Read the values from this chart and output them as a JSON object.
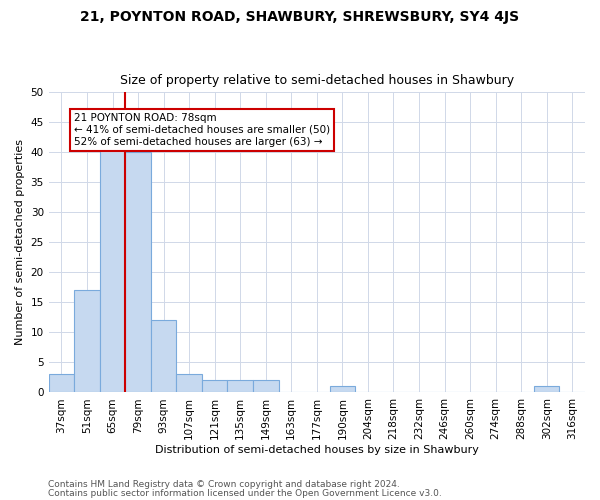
{
  "title": "21, POYNTON ROAD, SHAWBURY, SHREWSBURY, SY4 4JS",
  "subtitle": "Size of property relative to semi-detached houses in Shawbury",
  "xlabel": "Distribution of semi-detached houses by size in Shawbury",
  "ylabel": "Number of semi-detached properties",
  "footnote1": "Contains HM Land Registry data © Crown copyright and database right 2024.",
  "footnote2": "Contains public sector information licensed under the Open Government Licence v3.0.",
  "bin_labels": [
    "37sqm",
    "51sqm",
    "65sqm",
    "79sqm",
    "93sqm",
    "107sqm",
    "121sqm",
    "135sqm",
    "149sqm",
    "163sqm",
    "177sqm",
    "190sqm",
    "204sqm",
    "218sqm",
    "232sqm",
    "246sqm",
    "260sqm",
    "274sqm",
    "288sqm",
    "302sqm",
    "316sqm"
  ],
  "bar_values": [
    3,
    17,
    41,
    40,
    12,
    3,
    2,
    2,
    2,
    0,
    0,
    1,
    0,
    0,
    0,
    0,
    0,
    0,
    0,
    1,
    0
  ],
  "bar_color": "#c6d9f0",
  "bar_edge_color": "#7aaadc",
  "vline_x": 2.5,
  "vline_color": "#cc0000",
  "annotation_text": "21 POYNTON ROAD: 78sqm\n← 41% of semi-detached houses are smaller (50)\n52% of semi-detached houses are larger (63) →",
  "annotation_box_color": "#cc0000",
  "ylim": [
    0,
    50
  ],
  "yticks": [
    0,
    5,
    10,
    15,
    20,
    25,
    30,
    35,
    40,
    45,
    50
  ],
  "grid_color": "#d0d8e8",
  "background_color": "#ffffff",
  "title_fontsize": 10,
  "subtitle_fontsize": 9,
  "ylabel_fontsize": 8,
  "xlabel_fontsize": 8,
  "tick_fontsize": 7.5,
  "footnote_fontsize": 6.5,
  "annotation_fontsize": 7.5
}
